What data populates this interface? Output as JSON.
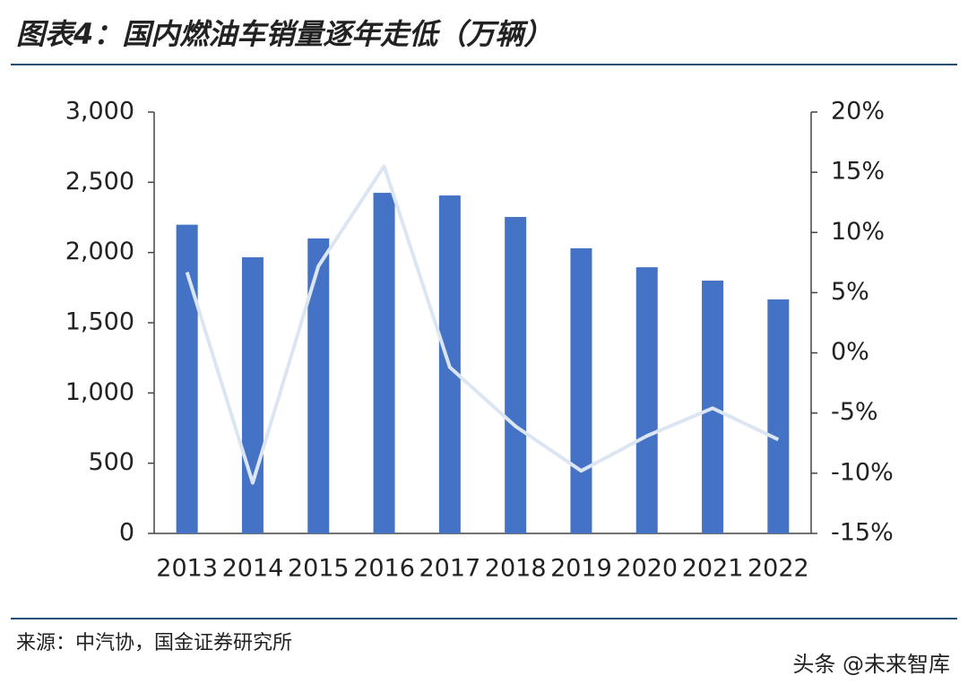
{
  "chart_data": {
    "type": "bar",
    "title": "图表4：国内燃油车销量逐年走低（万辆）",
    "source": "来源：中汽协，国金证券研究所",
    "watermark": "头条 @未来智库",
    "categories": [
      "2013",
      "2014",
      "2015",
      "2016",
      "2017",
      "2018",
      "2019",
      "2020",
      "2021",
      "2022"
    ],
    "series": [
      {
        "type": "bar",
        "color": "#4472c4",
        "values": [
          2198,
          1966,
          2100,
          2425,
          2406,
          2253,
          2030,
          1895,
          1800,
          1666
        ]
      },
      {
        "type": "line",
        "axis": "y2",
        "color": "#dce6f2",
        "values": [
          6.7,
          -10.8,
          7.2,
          15.5,
          -1.2,
          -6.1,
          -9.8,
          -6.9,
          -4.6,
          -7.2
        ]
      }
    ],
    "ylim": [
      0,
      3000
    ],
    "yticks": [
      0,
      500,
      {
        "value": 1000,
        "label": "1,000"
      },
      {
        "value": 1500,
        "label": "1,500"
      },
      {
        "value": 2000,
        "label": "2,000"
      },
      {
        "value": 2500,
        "label": "2,500"
      },
      {
        "value": 3000,
        "label": "3,000"
      }
    ],
    "y2lim": [
      -15,
      20
    ],
    "y2ticks": [
      {
        "value": -15,
        "label": "-15%"
      },
      {
        "value": -10,
        "label": "-10%"
      },
      {
        "value": -5,
        "label": "-5%"
      },
      {
        "value": 0,
        "label": "0%"
      },
      {
        "value": 5,
        "label": "5%"
      },
      {
        "value": 10,
        "label": "10%"
      },
      {
        "value": 15,
        "label": "15%"
      },
      {
        "value": 20,
        "label": "20%"
      }
    ],
    "grid": false
  }
}
